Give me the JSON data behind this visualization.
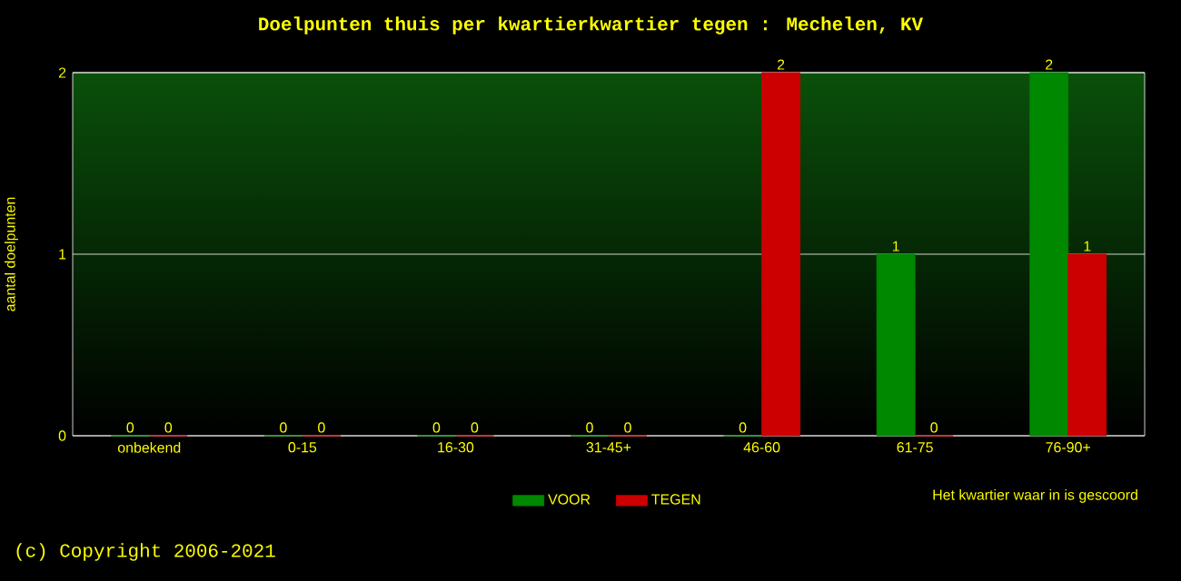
{
  "chart_data": {
    "type": "bar",
    "title": "Doelpunten thuis per kwartierkwartier tegen : Mechelen, KV",
    "xlabel": "Het kwartier waar in is gescoord",
    "ylabel": "aantal doelpunten",
    "categories": [
      "onbekend",
      "0-15",
      "16-30",
      "31-45+",
      "46-60",
      "61-75",
      "76-90+"
    ],
    "series": [
      {
        "name": "VOOR",
        "color": "#008800",
        "values": [
          0,
          0,
          0,
          0,
          0,
          1,
          2
        ]
      },
      {
        "name": "TEGEN",
        "color": "#cc0000",
        "values": [
          0,
          0,
          0,
          0,
          2,
          0,
          1
        ]
      }
    ],
    "ylim": [
      0,
      2
    ],
    "yticks": [
      0,
      1,
      2
    ],
    "grid": "y",
    "legend": "bottom",
    "data_labels": true,
    "annotations": [
      "(c) Copyright 2006-2021"
    ]
  }
}
